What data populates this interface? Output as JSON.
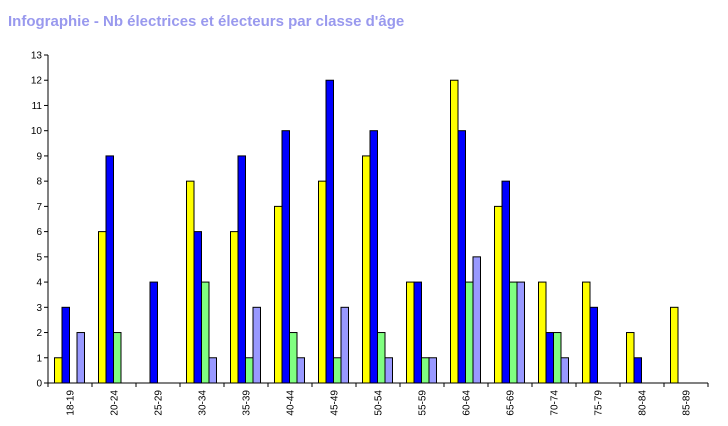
{
  "chart_data": {
    "type": "bar",
    "title": "Infographie - Nb électrices et électeurs par classe d'âge",
    "xlabel": "",
    "ylabel": "",
    "ylim": [
      0,
      13
    ],
    "yticks": [
      "0",
      "1",
      "2",
      "3",
      "4",
      "5",
      "6",
      "7",
      "8",
      "9",
      "10",
      "11",
      "12",
      "13"
    ],
    "grid": false,
    "legend": "none",
    "categories": [
      "18-19",
      "20-24",
      "25-29",
      "30-34",
      "35-39",
      "40-44",
      "45-49",
      "50-54",
      "55-59",
      "60-64",
      "65-69",
      "70-74",
      "75-79",
      "80-84",
      "85-89"
    ],
    "series": [
      {
        "color": "#ffff00",
        "values": [
          1,
          6,
          0,
          8,
          6,
          7,
          8,
          9,
          4,
          12,
          7,
          4,
          4,
          2,
          3
        ]
      },
      {
        "color": "#0000ff",
        "values": [
          3,
          9,
          4,
          6,
          9,
          10,
          12,
          10,
          4,
          10,
          8,
          2,
          3,
          1,
          0
        ]
      },
      {
        "color": "#80ff80",
        "values": [
          0,
          2,
          0,
          4,
          1,
          2,
          1,
          2,
          1,
          4,
          4,
          2,
          0,
          0,
          0
        ]
      },
      {
        "color": "#9999ff",
        "values": [
          2,
          0,
          0,
          1,
          3,
          1,
          3,
          1,
          1,
          5,
          4,
          1,
          0,
          0,
          0
        ]
      }
    ]
  }
}
